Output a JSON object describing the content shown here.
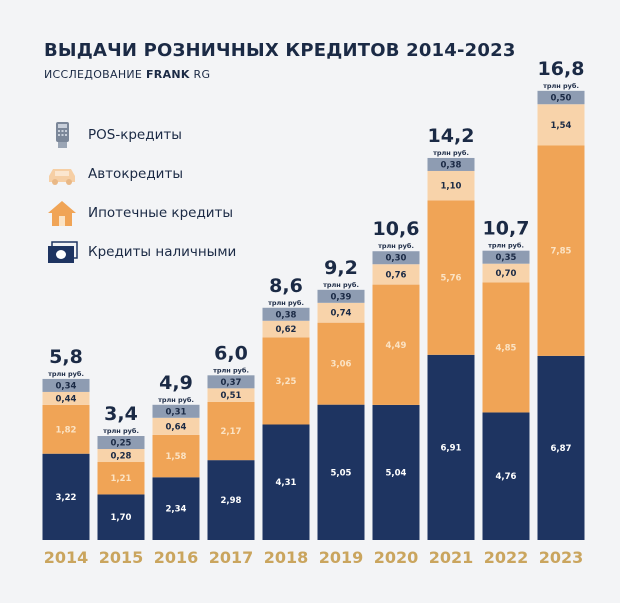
{
  "chart_data": {
    "type": "bar",
    "stacked": true,
    "title": "ВЫДАЧИ РОЗНИЧНЫХ КРЕДИТОВ 2014-2023",
    "subtitle_prefix": "ИССЛЕДОВАНИЕ",
    "subtitle_brand": "FRANK",
    "subtitle_suffix": "RG",
    "unit": "трлн руб.",
    "categories": [
      "2014",
      "2015",
      "2016",
      "2017",
      "2018",
      "2019",
      "2020",
      "2021",
      "2022",
      "2023"
    ],
    "totals": [
      "5,8",
      "3,4",
      "4,9",
      "6,0",
      "8,6",
      "9,2",
      "10,6",
      "14,2",
      "10,7",
      "16,8"
    ],
    "series": [
      {
        "name": "Кредиты наличными",
        "color": "#1e3461",
        "label_color": "#ffffff",
        "icon": "cash-icon",
        "values": [
          3.22,
          1.7,
          2.34,
          2.98,
          4.31,
          5.05,
          5.04,
          6.91,
          4.76,
          6.87
        ]
      },
      {
        "name": "Ипотечные кредиты",
        "color": "#f0a456",
        "label_color": "#fbe3c4",
        "icon": "house-icon",
        "values": [
          1.82,
          1.21,
          1.58,
          2.17,
          3.25,
          3.06,
          4.49,
          5.76,
          4.85,
          7.85
        ]
      },
      {
        "name": "Автокредиты",
        "color": "#f8d3aa",
        "label_color": "#1b2a45",
        "icon": "car-icon",
        "values": [
          0.44,
          0.28,
          0.64,
          0.51,
          0.62,
          0.74,
          0.76,
          1.1,
          0.7,
          1.54
        ]
      },
      {
        "name": "POS-кредиты",
        "color": "#8e9cb2",
        "label_color": "#1b2a45",
        "icon": "pos-terminal-icon",
        "values": [
          0.34,
          0.25,
          0.31,
          0.37,
          0.38,
          0.39,
          0.3,
          0.38,
          0.35,
          0.5
        ]
      }
    ],
    "legend_order": [
      "POS-кредиты",
      "Автокредиты",
      "Ипотечные кредиты",
      "Кредиты наличными"
    ],
    "legend_placement": "top-left",
    "grid": false,
    "decimal_separator": ","
  }
}
